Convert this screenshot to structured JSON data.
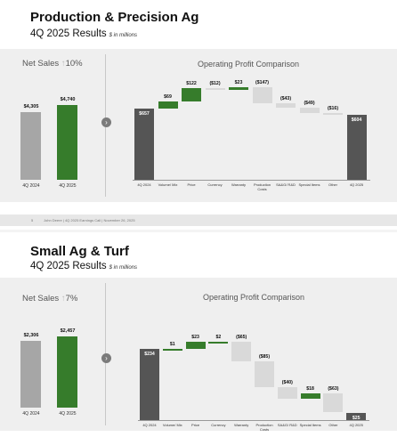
{
  "slides": [
    {
      "title": "Production & Precision Ag",
      "subtitle": "4Q 2025 Results",
      "unit": "$ in millions",
      "net_sales": {
        "label": "Net Sales",
        "arrow": "↑",
        "change": "10%",
        "bars": [
          {
            "label": "4Q 2024",
            "value": 4305,
            "value_label": "$4,305",
            "color": "#a6a6a6"
          },
          {
            "label": "4Q 2025",
            "value": 4740,
            "value_label": "$4,740",
            "color": "#367c2b"
          }
        ]
      },
      "chevron": "›",
      "op_title": "Operating Profit Comparison",
      "chart_data": {
        "type": "waterfall",
        "title": "Operating Profit Comparison",
        "categories": [
          "4Q 2024",
          "Volume/ Mix",
          "Price",
          "Currency",
          "Warranty",
          "Production Costs",
          "SA&G/ R&D",
          "Special Items",
          "Other",
          "4Q 2025"
        ],
        "values": [
          657,
          69,
          122,
          -12,
          23,
          -147,
          -43,
          -49,
          -16,
          604
        ],
        "value_labels": [
          "$657",
          "$69",
          "$122",
          "($12)",
          "$23",
          "($147)",
          "($43)",
          "($49)",
          "($16)",
          "$604"
        ],
        "kinds": [
          "total",
          "delta",
          "delta",
          "delta",
          "delta",
          "delta",
          "delta",
          "delta",
          "delta",
          "total"
        ]
      },
      "footer": {
        "page": "5",
        "text": "John Deere | 4Q 2025 Earnings Call | November 26, 2025"
      }
    },
    {
      "title": "Small Ag & Turf",
      "subtitle": "4Q 2025 Results",
      "unit": "$ in millions",
      "net_sales": {
        "label": "Net Sales",
        "arrow": "↑",
        "change": "7%",
        "bars": [
          {
            "label": "4Q 2024",
            "value": 2306,
            "value_label": "$2,306",
            "color": "#a6a6a6"
          },
          {
            "label": "4Q 2025",
            "value": 2457,
            "value_label": "$2,457",
            "color": "#367c2b"
          }
        ]
      },
      "chevron": "›",
      "op_title": "Operating Profit Comparison",
      "chart_data": {
        "type": "waterfall",
        "title": "Operating Profit Comparison",
        "categories": [
          "4Q 2024",
          "Volume/ Mix",
          "Price",
          "Currency",
          "Warranty",
          "Production Costs",
          "SA&G/ R&D",
          "Special Items",
          "Other",
          "4Q 2025"
        ],
        "values": [
          234,
          1,
          23,
          2,
          -65,
          -85,
          -40,
          18,
          -63,
          25
        ],
        "value_labels": [
          "$234",
          "$1",
          "$23",
          "$2",
          "($65)",
          "($85)",
          "($40)",
          "$18",
          "($63)",
          "$25"
        ],
        "kinds": [
          "total",
          "delta",
          "delta",
          "delta",
          "delta",
          "delta",
          "delta",
          "delta",
          "delta",
          "total"
        ]
      }
    }
  ],
  "colors": {
    "total": "#555555",
    "positive": "#367c2b",
    "negative": "#d9d9d9",
    "prior": "#a6a6a6"
  }
}
